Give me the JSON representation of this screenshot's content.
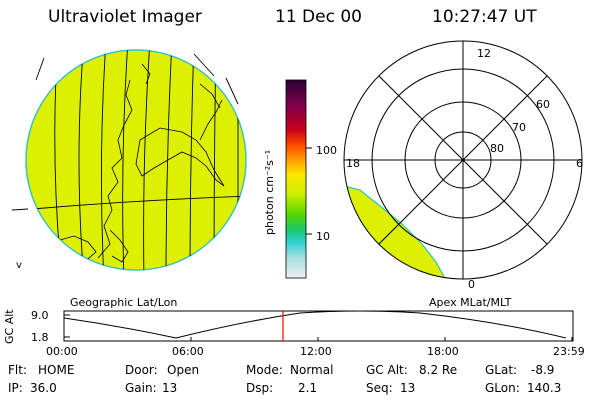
{
  "header": {
    "instrument": "Ultraviolet Imager",
    "date": "11 Dec 00",
    "time": "10:27:47 UT"
  },
  "colorbar": {
    "unit_label": "photon cm⁻²s⁻¹",
    "ticks": [
      "100",
      "10"
    ],
    "colors": [
      "#2a0033",
      "#7a004a",
      "#c8001a",
      "#ff4b00",
      "#ff9a00",
      "#ffe800",
      "#c8f000",
      "#55d600",
      "#18c870",
      "#30d0d0",
      "#a8e0e0",
      "#f0f0f0"
    ]
  },
  "geo_panel": {
    "label": "Geographic Lat/Lon",
    "fill_color": "#ddf000"
  },
  "polar_panel": {
    "label": "Apex MLat/MLT",
    "mlt_labels": {
      "top": "12",
      "left": "18",
      "right": "6",
      "bottom": "0"
    },
    "lat_labels": [
      "60",
      "70",
      "80"
    ]
  },
  "orbit_plot": {
    "ylabel": "GC Alt",
    "y_ticks": [
      "9.0",
      "1.8"
    ],
    "x_ticks": [
      "00:00",
      "06:00",
      "12:00",
      "18:00",
      "23:59"
    ],
    "marker_color": "#ff0000"
  },
  "info": {
    "row1": [
      {
        "label": "Flt:",
        "value": "HOME"
      },
      {
        "label": "Door:",
        "value": "Open"
      },
      {
        "label": "Mode:",
        "value": "Normal"
      },
      {
        "label": "GC Alt:",
        "value": "8.2 Re"
      },
      {
        "label": "GLat:",
        "value": "-8.9"
      }
    ],
    "row2": [
      {
        "label": "IP:",
        "value": "36.0"
      },
      {
        "label": "Gain:",
        "value": "13"
      },
      {
        "label": "Dsp:",
        "value": "2.1"
      },
      {
        "label": "Seq:",
        "value": "13"
      },
      {
        "label": "GLon:",
        "value": "140.3"
      }
    ]
  }
}
